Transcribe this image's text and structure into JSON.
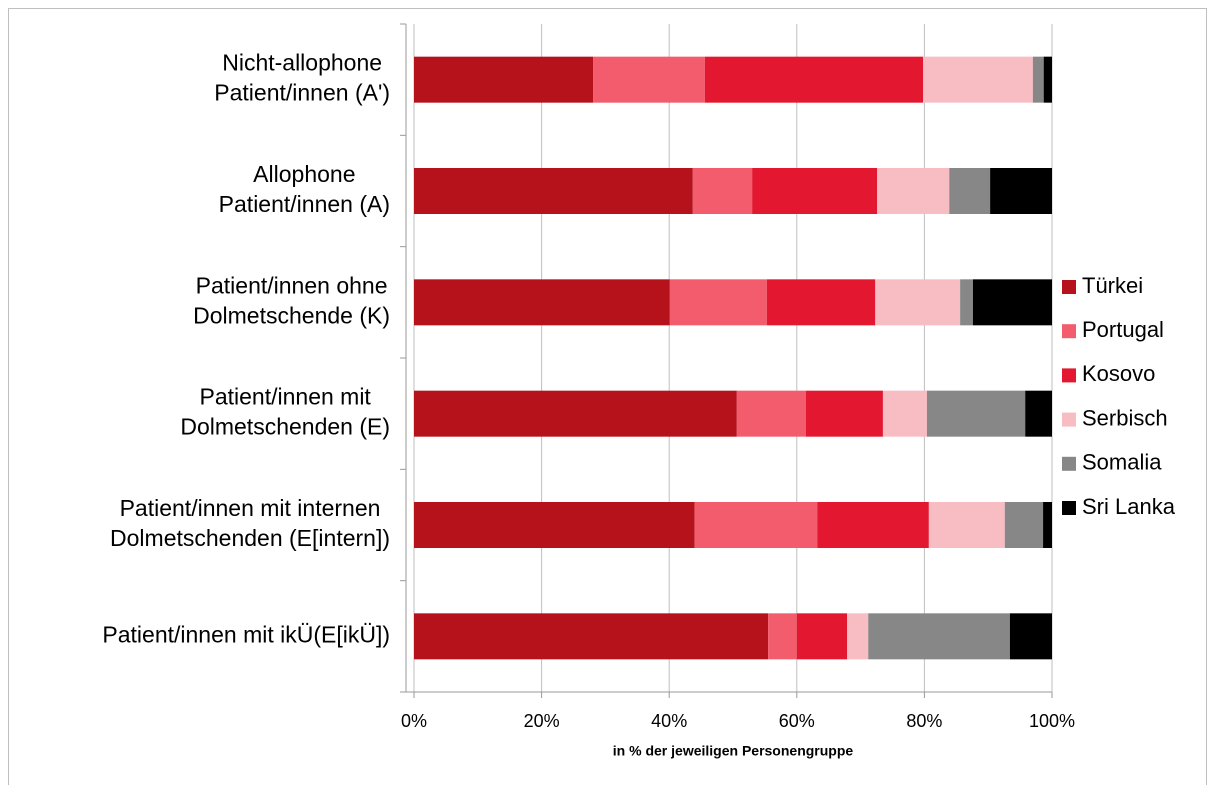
{
  "chart_data": {
    "type": "stacked_barh",
    "categories": [
      [
        "Nicht-allophone",
        "Patient/innen (A')"
      ],
      [
        "Allophone",
        "Patient/innen (A)"
      ],
      [
        "Patient/innen ohne",
        "Dolmetschende (K)"
      ],
      [
        "Patient/innen mit",
        "Dolmetschenden (E)"
      ],
      [
        "Patient/innen mit internen",
        "Dolmetschenden (E[intern])"
      ],
      [
        "Patient/innen mit ikÜ(E[ikÜ])"
      ]
    ],
    "series": [
      {
        "name": "Türkei",
        "color": "#b5121b",
        "values": [
          28.1,
          43.7,
          40.1,
          50.6,
          44.0,
          55.5
        ]
      },
      {
        "name": "Portugal",
        "color": "#f25c6c",
        "values": [
          17.5,
          9.3,
          15.2,
          10.8,
          19.2,
          4.5
        ]
      },
      {
        "name": "Kosovo",
        "color": "#e3172f",
        "values": [
          34.2,
          19.6,
          17.0,
          12.1,
          17.5,
          7.9
        ]
      },
      {
        "name": "Serbisch",
        "color": "#f8bcc3",
        "values": [
          17.2,
          11.3,
          13.3,
          6.9,
          11.9,
          3.3
        ]
      },
      {
        "name": "Somalia",
        "color": "#878787",
        "values": [
          1.7,
          6.4,
          2.0,
          15.4,
          6.0,
          22.2
        ]
      },
      {
        "name": "Sri Lanka",
        "color": "#000000",
        "values": [
          1.3,
          9.7,
          12.4,
          4.2,
          1.4,
          6.6
        ]
      }
    ],
    "xlim": [
      0,
      100
    ],
    "xticks": [
      {
        "value": 0,
        "label": "0%"
      },
      {
        "value": 20,
        "label": "20%"
      },
      {
        "value": 40,
        "label": "40%"
      },
      {
        "value": 60,
        "label": "60%"
      },
      {
        "value": 80,
        "label": "80%"
      },
      {
        "value": 100,
        "label": "100%"
      }
    ],
    "xlabel": "in % der jeweiligen Personengruppe",
    "grid": true,
    "legend": "right"
  }
}
